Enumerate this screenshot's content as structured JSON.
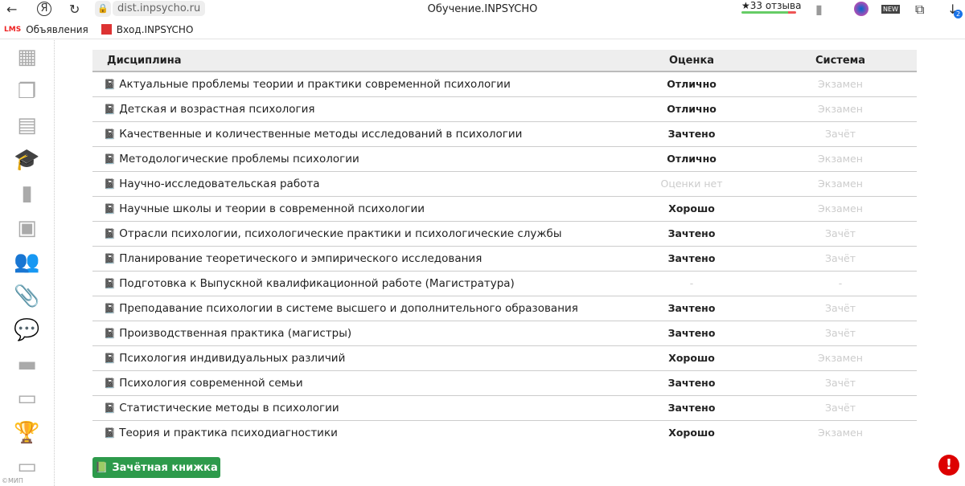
{
  "browser": {
    "url": "dist.inpsycho.ru",
    "title": "Обучение.INPSYCHO",
    "reviews": "★33 отзыва",
    "downloads_badge": "2",
    "new_label": "NEW"
  },
  "bookmarks": [
    {
      "label": "Объявления",
      "icon_text": "LMS"
    },
    {
      "label": "Вход.INPSYCHO"
    }
  ],
  "sidebar": {
    "icons": [
      "grid-icon",
      "documents-icon",
      "calendar-icon",
      "graduation-cap-icon",
      "bookmark-icon",
      "video-file-icon",
      "users-icon",
      "paperclip-icon",
      "comments-icon",
      "folder-icon",
      "archive-icon",
      "trophy-icon",
      "credit-card-icon"
    ],
    "active": "graduation-cap-icon",
    "copyright": "©МИП"
  },
  "table": {
    "headers": [
      "Дисциплина",
      "Оценка",
      "Система"
    ],
    "rows": [
      {
        "name": "Актуальные проблемы теории и практики современной психологии",
        "grade": "Отлично",
        "system": "Экзамен"
      },
      {
        "name": "Детская и возрастная психология",
        "grade": "Отлично",
        "system": "Экзамен"
      },
      {
        "name": "Качественные и количественные методы исследований в психологии",
        "grade": "Зачтено",
        "system": "Зачёт"
      },
      {
        "name": "Методологические проблемы психологии",
        "grade": "Отлично",
        "system": "Экзамен"
      },
      {
        "name": "Научно-исследовательская работа",
        "grade": "Оценки нет",
        "system": "Экзамен"
      },
      {
        "name": "Научные школы и теории в современной психологии",
        "grade": "Хорошо",
        "system": "Экзамен"
      },
      {
        "name": "Отрасли психологии, психологические практики и психологические службы",
        "grade": "Зачтено",
        "system": "Зачёт"
      },
      {
        "name": "Планирование теоретического и эмпирического исследования",
        "grade": "Зачтено",
        "system": "Зачёт"
      },
      {
        "name": "Подготовка к Выпускной квалификационной работе (Магистратура)",
        "grade": "-",
        "system": "-"
      },
      {
        "name": "Преподавание психологии в системе высшего и дополнительного образования",
        "grade": "Зачтено",
        "system": "Зачёт"
      },
      {
        "name": "Производственная практика (магистры)",
        "grade": "Зачтено",
        "system": "Зачёт"
      },
      {
        "name": "Психология индивидуальных различий",
        "grade": "Хорошо",
        "system": "Экзамен"
      },
      {
        "name": "Психология современной семьи",
        "grade": "Зачтено",
        "system": "Зачёт"
      },
      {
        "name": "Статистические методы в психологии",
        "grade": "Зачтено",
        "system": "Зачёт"
      },
      {
        "name": "Теория и практика психодиагностики",
        "grade": "Хорошо",
        "system": "Экзамен"
      }
    ]
  },
  "record_book_button": "Зачётная книжка",
  "alert_icon": "!",
  "colors": {
    "button": "#2d9a4b",
    "alert": "#dd0000"
  }
}
